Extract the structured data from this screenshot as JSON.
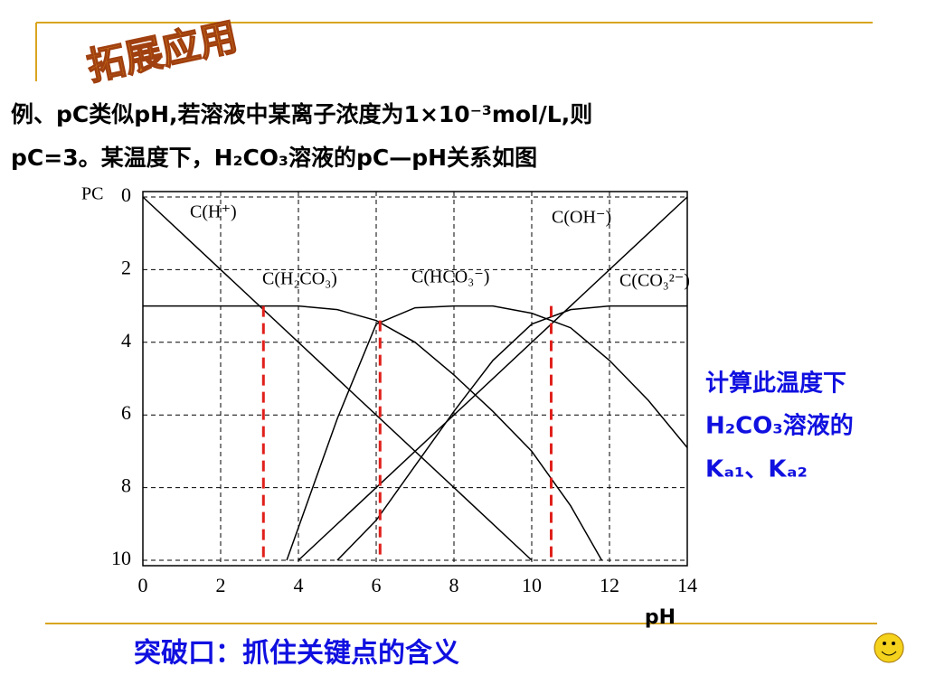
{
  "slide": {
    "header": "拓展应用",
    "text_lines": [
      "例、pC类似pH,若溶液中某离子浓度为1×10⁻³mol/L,则",
      "pC=3。某温度下，H₂CO₃溶液的pC—pH关系如图"
    ],
    "side_note": [
      "计算此温度下",
      "H₂CO₃溶液的",
      "Kₐ₁、Kₐ₂"
    ],
    "footer": "突破口：抓住关键点的含义"
  },
  "chart_data": {
    "type": "line",
    "x_label": "pH",
    "y_label": "PC",
    "xlim": [
      0,
      14
    ],
    "ylim": [
      0,
      10
    ],
    "y_inverted": true,
    "xticks": [
      0,
      2,
      4,
      6,
      8,
      10,
      12,
      14
    ],
    "yticks": [
      0,
      2,
      4,
      6,
      8,
      10
    ],
    "grid": true,
    "series": [
      {
        "name": "C(H⁺)",
        "color": "#000000",
        "x": [
          0,
          10
        ],
        "values": [
          0,
          10
        ]
      },
      {
        "name": "C(OH⁻)",
        "color": "#000000",
        "x": [
          4,
          14
        ],
        "values": [
          10,
          0
        ]
      },
      {
        "name": "C(H₂CO₃)",
        "color": "#000000",
        "x": [
          0,
          4,
          5,
          6,
          7,
          8,
          9,
          10,
          11,
          11.8
        ],
        "values": [
          3,
          3,
          3.1,
          3.4,
          4.0,
          4.9,
          5.9,
          7.0,
          8.5,
          10
        ]
      },
      {
        "name": "C(HCO₃⁻)",
        "color": "#000000",
        "x": [
          3.7,
          4.5,
          5,
          6,
          7,
          8,
          9,
          10,
          11,
          12,
          13,
          14
        ],
        "values": [
          10,
          7.6,
          6.1,
          3.5,
          3.05,
          3.0,
          3.0,
          3.2,
          3.6,
          4.5,
          5.6,
          6.9
        ]
      },
      {
        "name": "C(CO₃²⁻)",
        "color": "#000000",
        "x": [
          5,
          6,
          7,
          8,
          9,
          10,
          11,
          12,
          13,
          14
        ],
        "values": [
          10,
          8.9,
          7.4,
          5.9,
          4.5,
          3.5,
          3.1,
          3.0,
          3.0,
          3.0
        ]
      }
    ],
    "markers": {
      "color": "#e0201b",
      "x": [
        3.1,
        6.1,
        10.5
      ],
      "values": [
        3,
        3.4,
        3
      ]
    }
  }
}
